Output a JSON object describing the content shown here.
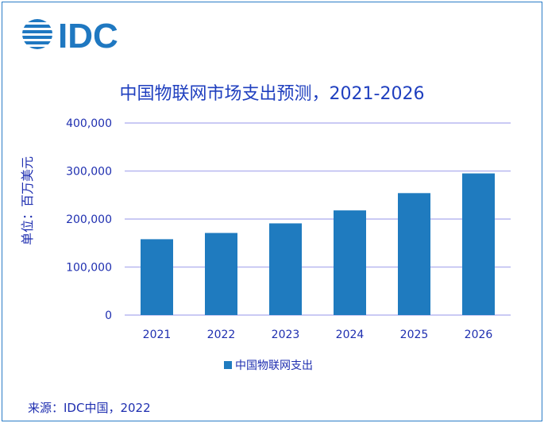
{
  "logo": {
    "text": "IDC",
    "color": "#1f78c1"
  },
  "source": "来源：IDC中国，2022",
  "chart_data": {
    "type": "bar",
    "title": "中国物联网市场支出预测，2021-2026",
    "ylabel": "单位：百万美元",
    "xlabel": "",
    "categories": [
      "2021",
      "2022",
      "2023",
      "2024",
      "2025",
      "2026"
    ],
    "series": [
      {
        "name": "中国物联网支出",
        "values": [
          158000,
          171000,
          191000,
          218000,
          254000,
          295000
        ],
        "color": "#1f7bbf"
      }
    ],
    "ylim": [
      0,
      400000
    ],
    "yticks": [
      0,
      100000,
      200000,
      300000,
      400000
    ],
    "ytick_labels": [
      "0",
      "100,000",
      "200,000",
      "300,000",
      "400,000"
    ],
    "grid": true,
    "legend": "bottom"
  }
}
